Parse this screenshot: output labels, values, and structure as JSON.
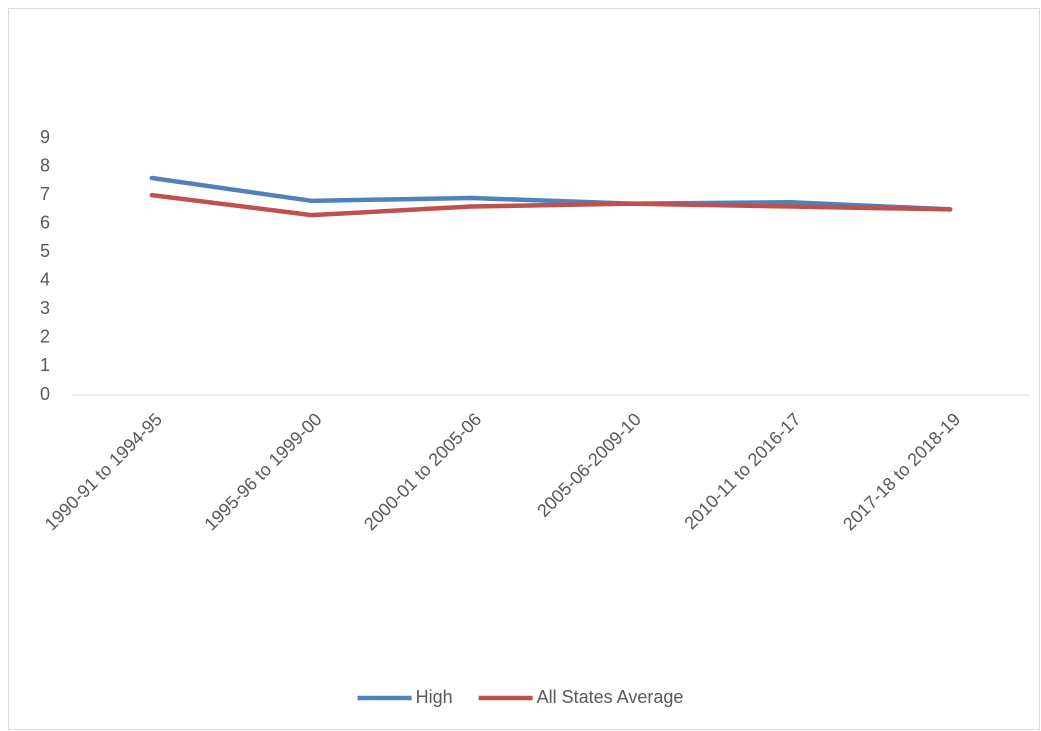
{
  "chart_data": {
    "type": "line",
    "categories": [
      "1990-91 to 1994-95",
      "1995-96 to 1999-00",
      "2000-01 to 2005-06",
      "2005-06-2009-10",
      "2010-11 to 2016-17",
      "2017-18 to 2018-19"
    ],
    "series": [
      {
        "name": "High",
        "color": "#4f81bd",
        "values": [
          7.6,
          6.8,
          6.9,
          6.7,
          6.75,
          6.5
        ]
      },
      {
        "name": "All States Average",
        "color": "#c0504d",
        "values": [
          7.0,
          6.3,
          6.6,
          6.7,
          6.6,
          6.5
        ]
      }
    ],
    "ylim": [
      0,
      9
    ],
    "yticks": [
      0,
      1,
      2,
      3,
      4,
      5,
      6,
      7,
      8,
      9
    ],
    "grid": false,
    "legend": "bottom"
  }
}
